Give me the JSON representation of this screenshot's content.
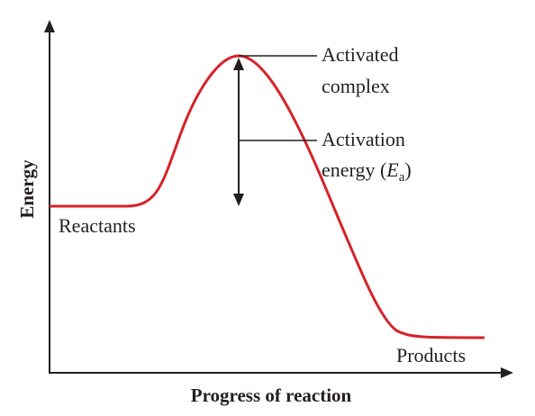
{
  "diagram": {
    "axes": {
      "y_label": "Energy",
      "x_label": "Progress of reaction"
    },
    "labels": {
      "activated_complex_line1": "Activated",
      "activated_complex_line2": "complex",
      "activation_energy_line1": "Activation",
      "activation_energy_line2_prefix": "energy (",
      "activation_energy_symbol": "E",
      "activation_energy_subscript": "a",
      "activation_energy_line2_suffix": ")",
      "reactants": "Reactants",
      "products": "Products"
    },
    "colors": {
      "curve": "#d6232a",
      "axes": "#231f20",
      "text": "#231f20"
    }
  }
}
